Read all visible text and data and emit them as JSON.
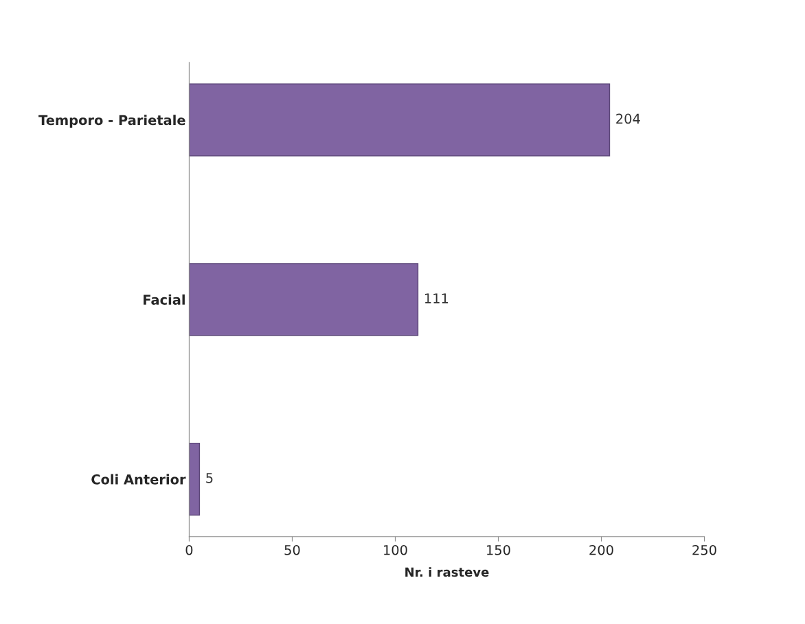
{
  "chart_data": {
    "type": "bar",
    "orientation": "horizontal",
    "categories": [
      "Temporo - Parietale",
      "Facial",
      "Coli Anterior"
    ],
    "values": [
      204,
      111,
      5
    ],
    "color": "#8064a2",
    "xlabel": "Nr. i rasteve",
    "xlim": [
      0,
      250
    ],
    "xticks": [
      0,
      50,
      100,
      150,
      200,
      250
    ],
    "data_labels": true,
    "grid": false,
    "legend": false
  }
}
